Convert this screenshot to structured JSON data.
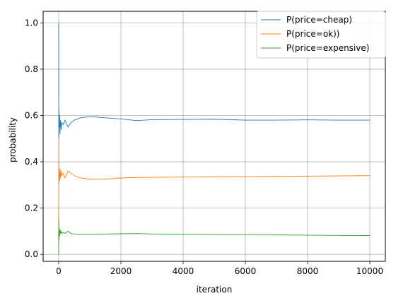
{
  "chart_data": {
    "type": "line",
    "title": "",
    "xlabel": "iteration",
    "ylabel": "probability",
    "xlim": [
      -500,
      10500
    ],
    "ylim": [
      -0.03,
      1.05
    ],
    "xticks": [
      0,
      2000,
      4000,
      6000,
      8000,
      10000
    ],
    "yticks": [
      0.0,
      0.2,
      0.4,
      0.6,
      0.8,
      1.0
    ],
    "xtick_labels": [
      "0",
      "2000",
      "4000",
      "6000",
      "8000",
      "10000"
    ],
    "ytick_labels": [
      "0.0",
      "0.2",
      "0.4",
      "0.6",
      "0.8",
      "1.0"
    ],
    "grid": true,
    "legend_position": "top-right",
    "series": [
      {
        "name": "P(price=cheap)",
        "color": "#1f77b4",
        "x": [
          1,
          5,
          10,
          20,
          30,
          40,
          60,
          80,
          100,
          150,
          200,
          300,
          400,
          500,
          700,
          1000,
          1500,
          2000,
          2500,
          3000,
          4000,
          5000,
          6000,
          7000,
          8000,
          9000,
          10000
        ],
        "values": [
          1.0,
          0.5,
          0.62,
          0.55,
          0.6,
          0.52,
          0.58,
          0.54,
          0.57,
          0.56,
          0.58,
          0.55,
          0.57,
          0.58,
          0.59,
          0.595,
          0.59,
          0.585,
          0.578,
          0.582,
          0.583,
          0.584,
          0.58,
          0.58,
          0.581,
          0.58,
          0.58
        ]
      },
      {
        "name": "P(price=ok))",
        "color": "#ff7f0e",
        "x": [
          1,
          5,
          10,
          20,
          30,
          40,
          60,
          80,
          100,
          150,
          200,
          300,
          400,
          500,
          700,
          1000,
          1500,
          2000,
          2500,
          3000,
          4000,
          5000,
          6000,
          7000,
          8000,
          9000,
          10000
        ],
        "values": [
          0.0,
          0.5,
          0.3,
          0.36,
          0.32,
          0.37,
          0.33,
          0.36,
          0.34,
          0.35,
          0.33,
          0.36,
          0.35,
          0.34,
          0.33,
          0.325,
          0.325,
          0.33,
          0.332,
          0.333,
          0.334,
          0.335,
          0.336,
          0.337,
          0.338,
          0.339,
          0.34
        ]
      },
      {
        "name": "P(price=expensive)",
        "color": "#2ca02c",
        "x": [
          1,
          5,
          10,
          20,
          30,
          40,
          60,
          80,
          100,
          150,
          200,
          300,
          400,
          500,
          700,
          1000,
          1500,
          2000,
          2500,
          3000,
          4000,
          5000,
          6000,
          7000,
          8000,
          9000,
          10000
        ],
        "values": [
          0.0,
          0.15,
          0.06,
          0.1,
          0.08,
          0.11,
          0.09,
          0.1,
          0.09,
          0.095,
          0.09,
          0.1,
          0.09,
          0.088,
          0.087,
          0.087,
          0.088,
          0.089,
          0.09,
          0.088,
          0.087,
          0.086,
          0.085,
          0.084,
          0.083,
          0.082,
          0.081
        ]
      }
    ]
  }
}
